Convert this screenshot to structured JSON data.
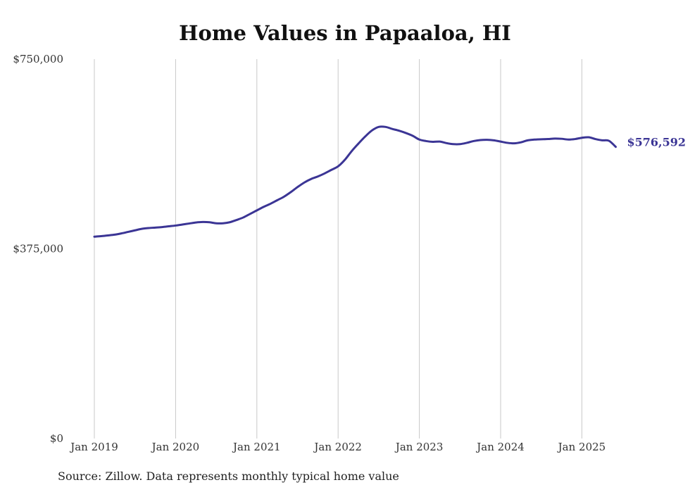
{
  "source_note": "Source: Zillow. Data represents monthly typical home value",
  "chart_data": {
    "type": "line",
    "title": "Home Values in Papaaloa, HI",
    "xlabel": "",
    "ylabel": "",
    "ylim": [
      0,
      750000
    ],
    "yticks": [
      {
        "value": 0,
        "label": "$0"
      },
      {
        "value": 375000,
        "label": "$375,000"
      },
      {
        "value": 750000,
        "label": "$750,000"
      }
    ],
    "xticks": [
      "Jan 2019",
      "Jan 2020",
      "Jan 2021",
      "Jan 2022",
      "Jan 2023",
      "Jan 2024",
      "Jan 2025"
    ],
    "x_start": "Jan 2019",
    "x_end": "Jun 2025",
    "grid": {
      "x": true,
      "y": false
    },
    "line_color": "#3b3595",
    "end_label": "$576,592",
    "series": [
      {
        "values": [
          399000,
          400000,
          401500,
          403000,
          405500,
          408500,
          411500,
          414500,
          416000,
          417000,
          418000,
          419500,
          421000,
          423000,
          425000,
          427000,
          428000,
          427500,
          425500,
          425500,
          427500,
          432000,
          437000,
          444000,
          451000,
          458000,
          464000,
          471000,
          478000,
          487000,
          497000,
          506000,
          513000,
          518000,
          524000,
          531000,
          538000,
          551000,
          568000,
          583000,
          597000,
          609000,
          616000,
          616000,
          612000,
          608500,
          604000,
          598500,
          591000,
          588000,
          586500,
          587000,
          584000,
          582000,
          582000,
          584500,
          588000,
          590000,
          590500,
          589500,
          587000,
          584500,
          583500,
          585500,
          589500,
          591000,
          591500,
          592000,
          593000,
          592500,
          591000,
          592000,
          594500,
          595500,
          592000,
          589500,
          588500,
          576592
        ]
      }
    ]
  }
}
